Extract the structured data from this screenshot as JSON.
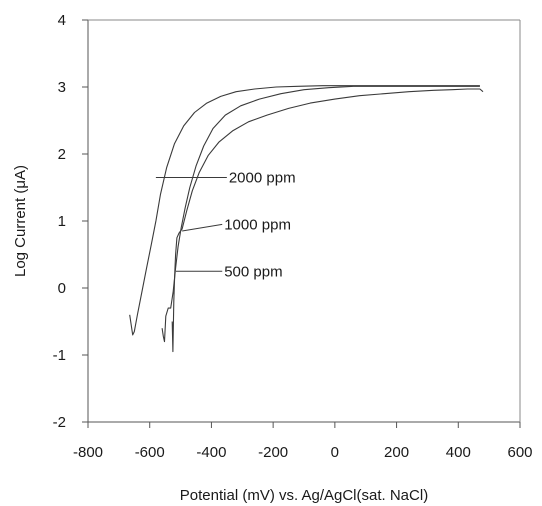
{
  "chart_data": {
    "type": "line",
    "title": "",
    "xlabel": "Potential (mV) vs. Ag/AgCl(sat. NaCl)",
    "ylabel": "Log Current (μA)",
    "xlim": [
      -800,
      600
    ],
    "ylim": [
      -2,
      4
    ],
    "xticks": [
      -800,
      -600,
      -400,
      -200,
      0,
      200,
      400,
      600
    ],
    "xtick_labels": [
      "-800",
      "-600",
      "-400",
      "-200",
      "0",
      "200",
      "400",
      "600"
    ],
    "yticks": [
      -2,
      -1,
      0,
      1,
      2,
      3,
      4
    ],
    "ytick_labels": [
      "-2",
      "-1",
      "0",
      "1",
      "2",
      "3",
      "4"
    ],
    "grid": false,
    "legend": "none",
    "line_color": "#3a3a3a",
    "series": [
      {
        "name": "2000 ppm",
        "x": [
          -665,
          -660,
          -655,
          -650,
          -640,
          -625,
          -610,
          -595,
          -580,
          -565,
          -545,
          -520,
          -490,
          -455,
          -415,
          -370,
          -320,
          -260,
          -190,
          -120,
          -40,
          40,
          120,
          200,
          300,
          400,
          470
        ],
        "y": [
          -0.4,
          -0.55,
          -0.7,
          -0.65,
          -0.4,
          -0.05,
          0.3,
          0.65,
          1.0,
          1.4,
          1.8,
          2.15,
          2.42,
          2.62,
          2.76,
          2.86,
          2.93,
          2.97,
          3.0,
          3.01,
          3.02,
          3.02,
          3.02,
          3.02,
          3.02,
          3.02,
          3.02
        ]
      },
      {
        "name": "1000 ppm",
        "x": [
          -560,
          -556,
          -552,
          -548,
          -540,
          -532,
          -524,
          -516,
          -508,
          -498,
          -485,
          -470,
          -450,
          -425,
          -395,
          -355,
          -305,
          -245,
          -175,
          -100,
          -20,
          60,
          140,
          220,
          300,
          380,
          470
        ],
        "y": [
          -0.6,
          -0.72,
          -0.8,
          -0.42,
          -0.3,
          -0.3,
          -0.05,
          0.3,
          0.62,
          0.9,
          1.2,
          1.5,
          1.82,
          2.12,
          2.38,
          2.58,
          2.72,
          2.82,
          2.9,
          2.96,
          2.99,
          3.01,
          3.01,
          3.01,
          3.01,
          3.01,
          3.01
        ]
      },
      {
        "name": "500 ppm",
        "x": [
          -527,
          -525,
          -522,
          -519,
          -516,
          -512,
          -505,
          -495,
          -480,
          -462,
          -440,
          -410,
          -375,
          -330,
          -280,
          -220,
          -150,
          -80,
          0,
          80,
          160,
          240,
          320,
          380,
          430,
          470,
          480
        ],
        "y": [
          -0.5,
          -0.95,
          -0.2,
          0.2,
          0.5,
          0.75,
          0.82,
          0.88,
          1.15,
          1.45,
          1.72,
          1.98,
          2.18,
          2.35,
          2.48,
          2.58,
          2.68,
          2.76,
          2.82,
          2.87,
          2.9,
          2.93,
          2.95,
          2.96,
          2.97,
          2.97,
          2.93
        ]
      }
    ],
    "annotations": [
      {
        "text": "2000 ppm",
        "series": "2000 ppm",
        "at_x": -580,
        "at_y": 1.65,
        "label_x": -350,
        "label_y": 1.65
      },
      {
        "text": "1000 ppm",
        "series": "1000 ppm",
        "at_x": -495,
        "at_y": 0.85,
        "label_x": -365,
        "label_y": 0.95
      },
      {
        "text": "500 ppm",
        "series": "500 ppm",
        "at_x": -515,
        "at_y": 0.25,
        "label_x": -365,
        "label_y": 0.25
      }
    ]
  }
}
